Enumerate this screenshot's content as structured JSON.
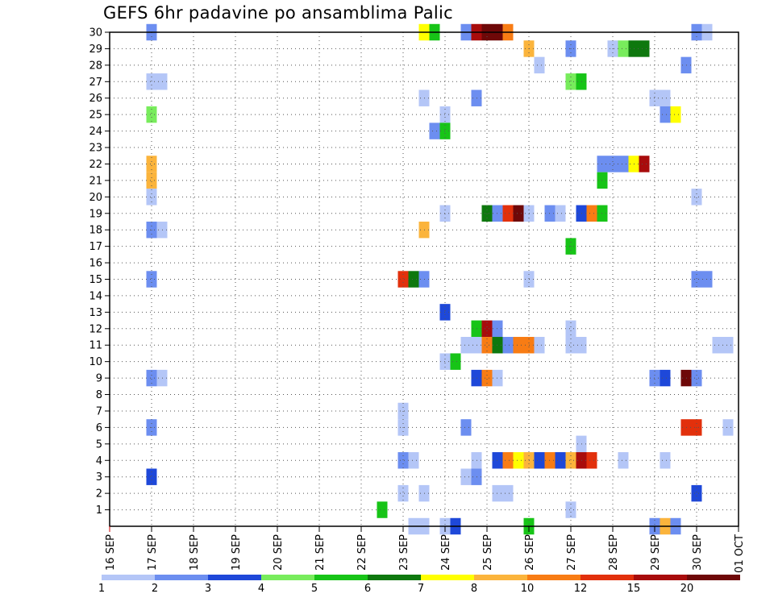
{
  "chart_data": {
    "type": "heatmap",
    "title": "GEFS 6hr padavine po ansamblima Palic",
    "xlabel": "",
    "ylabel": "",
    "x_ticks": [
      "16 SEP",
      "17 SEP",
      "18 SEP",
      "19 SEP",
      "20 SEP",
      "21 SEP",
      "22 SEP",
      "23 SEP",
      "24 SEP",
      "25 SEP",
      "26 SEP",
      "27 SEP",
      "28 SEP",
      "29 SEP",
      "30 SEP",
      "01 OCT"
    ],
    "x_range_days": [
      0,
      15
    ],
    "y_ticks": [
      1,
      2,
      3,
      4,
      5,
      6,
      7,
      8,
      9,
      10,
      11,
      12,
      13,
      14,
      15,
      16,
      17,
      18,
      19,
      20,
      21,
      22,
      23,
      24,
      25,
      26,
      27,
      28,
      29,
      30
    ],
    "y_range": [
      0,
      30
    ],
    "grid": true,
    "colorbar": {
      "labels": [
        "1",
        "2",
        "3",
        "4",
        "5",
        "6",
        "7",
        "8",
        "10",
        "12",
        "15",
        "20"
      ],
      "colors": [
        "#b4c6f7",
        "#6c8ef0",
        "#1e48d9",
        "#78ec5c",
        "#17c417",
        "#0e780e",
        "#ffff00",
        "#fbb43c",
        "#f87c14",
        "#e2300c",
        "#a80c0c",
        "#6e0808"
      ]
    },
    "cells_note": "each cell: [member, day_index (fraction of day from 16 SEP 00z), color_class 0-11]",
    "cells": [
      [
        30,
        1.0,
        1
      ],
      [
        30,
        7.5,
        6
      ],
      [
        30,
        7.75,
        4
      ],
      [
        30,
        8.5,
        1
      ],
      [
        30,
        8.75,
        10
      ],
      [
        30,
        9.0,
        11
      ],
      [
        30,
        9.25,
        11
      ],
      [
        30,
        9.5,
        8
      ],
      [
        30,
        14.0,
        1
      ],
      [
        30,
        14.25,
        0
      ],
      [
        29,
        10.0,
        7
      ],
      [
        29,
        11.0,
        1
      ],
      [
        29,
        12.0,
        0
      ],
      [
        29,
        12.25,
        3
      ],
      [
        29,
        12.5,
        5
      ],
      [
        29,
        12.75,
        5
      ],
      [
        28,
        10.25,
        0
      ],
      [
        28,
        13.75,
        1
      ],
      [
        27,
        1.0,
        0
      ],
      [
        27,
        1.25,
        0
      ],
      [
        27,
        11.0,
        3
      ],
      [
        27,
        11.25,
        4
      ],
      [
        26,
        7.5,
        0
      ],
      [
        26,
        8.75,
        1
      ],
      [
        26,
        13.0,
        0
      ],
      [
        26,
        13.25,
        0
      ],
      [
        25,
        1.0,
        3
      ],
      [
        25,
        8.0,
        0
      ],
      [
        25,
        13.25,
        1
      ],
      [
        25,
        13.5,
        6
      ],
      [
        24,
        7.75,
        1
      ],
      [
        24,
        8.0,
        4
      ],
      [
        22,
        1.0,
        7
      ],
      [
        22,
        11.75,
        1
      ],
      [
        22,
        12.0,
        1
      ],
      [
        22,
        12.25,
        1
      ],
      [
        22,
        12.5,
        6
      ],
      [
        22,
        12.75,
        10
      ],
      [
        21,
        1.0,
        7
      ],
      [
        21,
        11.75,
        4
      ],
      [
        20,
        1.0,
        0
      ],
      [
        20,
        14.0,
        0
      ],
      [
        19,
        8.0,
        0
      ],
      [
        19,
        9.0,
        5
      ],
      [
        19,
        9.25,
        1
      ],
      [
        19,
        9.5,
        9
      ],
      [
        19,
        9.75,
        11
      ],
      [
        19,
        10.0,
        0
      ],
      [
        19,
        10.5,
        1
      ],
      [
        19,
        10.75,
        0
      ],
      [
        19,
        11.25,
        2
      ],
      [
        19,
        11.5,
        8
      ],
      [
        19,
        11.75,
        4
      ],
      [
        18,
        1.0,
        1
      ],
      [
        18,
        1.25,
        0
      ],
      [
        18,
        7.5,
        7
      ],
      [
        17,
        11.0,
        4
      ],
      [
        15,
        1.0,
        1
      ],
      [
        15,
        7.0,
        9
      ],
      [
        15,
        7.25,
        5
      ],
      [
        15,
        7.5,
        1
      ],
      [
        15,
        10.0,
        0
      ],
      [
        15,
        14.0,
        1
      ],
      [
        15,
        14.25,
        1
      ],
      [
        13,
        8.0,
        2
      ],
      [
        12,
        8.75,
        4
      ],
      [
        12,
        9.0,
        10
      ],
      [
        12,
        9.25,
        1
      ],
      [
        12,
        11.0,
        0
      ],
      [
        11,
        8.5,
        0
      ],
      [
        11,
        8.75,
        0
      ],
      [
        11,
        9.0,
        8
      ],
      [
        11,
        9.25,
        5
      ],
      [
        11,
        9.5,
        1
      ],
      [
        11,
        9.75,
        8
      ],
      [
        11,
        10.0,
        8
      ],
      [
        11,
        10.25,
        0
      ],
      [
        11,
        11.0,
        0
      ],
      [
        11,
        11.25,
        0
      ],
      [
        11,
        14.5,
        0
      ],
      [
        11,
        14.75,
        0
      ],
      [
        10,
        8.0,
        0
      ],
      [
        10,
        8.25,
        4
      ],
      [
        9,
        1.0,
        1
      ],
      [
        9,
        1.25,
        0
      ],
      [
        9,
        8.75,
        2
      ],
      [
        9,
        9.0,
        8
      ],
      [
        9,
        9.25,
        0
      ],
      [
        9,
        13.0,
        1
      ],
      [
        9,
        13.25,
        2
      ],
      [
        9,
        13.75,
        11
      ],
      [
        9,
        14.0,
        1
      ],
      [
        7,
        7.0,
        0
      ],
      [
        6,
        1.0,
        1
      ],
      [
        6,
        7.0,
        0
      ],
      [
        6,
        8.5,
        1
      ],
      [
        6,
        13.75,
        9
      ],
      [
        6,
        14.0,
        9
      ],
      [
        6,
        14.75,
        0
      ],
      [
        5,
        11.25,
        0
      ],
      [
        4,
        7.0,
        1
      ],
      [
        4,
        7.25,
        0
      ],
      [
        4,
        8.75,
        0
      ],
      [
        4,
        9.25,
        2
      ],
      [
        4,
        9.5,
        8
      ],
      [
        4,
        9.75,
        6
      ],
      [
        4,
        10.0,
        7
      ],
      [
        4,
        10.25,
        2
      ],
      [
        4,
        10.5,
        8
      ],
      [
        4,
        10.75,
        2
      ],
      [
        4,
        11.0,
        7
      ],
      [
        4,
        11.25,
        10
      ],
      [
        4,
        11.5,
        9
      ],
      [
        4,
        12.25,
        0
      ],
      [
        4,
        13.25,
        0
      ],
      [
        3,
        1.0,
        2
      ],
      [
        3,
        8.5,
        0
      ],
      [
        3,
        8.75,
        1
      ],
      [
        2,
        7.0,
        0
      ],
      [
        2,
        7.5,
        0
      ],
      [
        2,
        9.25,
        0
      ],
      [
        2,
        9.5,
        0
      ],
      [
        2,
        14.0,
        2
      ],
      [
        1,
        6.5,
        4
      ],
      [
        1,
        11.0,
        0
      ],
      [
        0,
        7.25,
        0
      ],
      [
        0,
        7.5,
        0
      ],
      [
        0,
        8.0,
        0
      ],
      [
        0,
        8.25,
        2
      ],
      [
        0,
        10.0,
        4
      ],
      [
        0,
        13.0,
        1
      ],
      [
        0,
        13.25,
        7
      ],
      [
        0,
        13.5,
        1
      ]
    ]
  }
}
